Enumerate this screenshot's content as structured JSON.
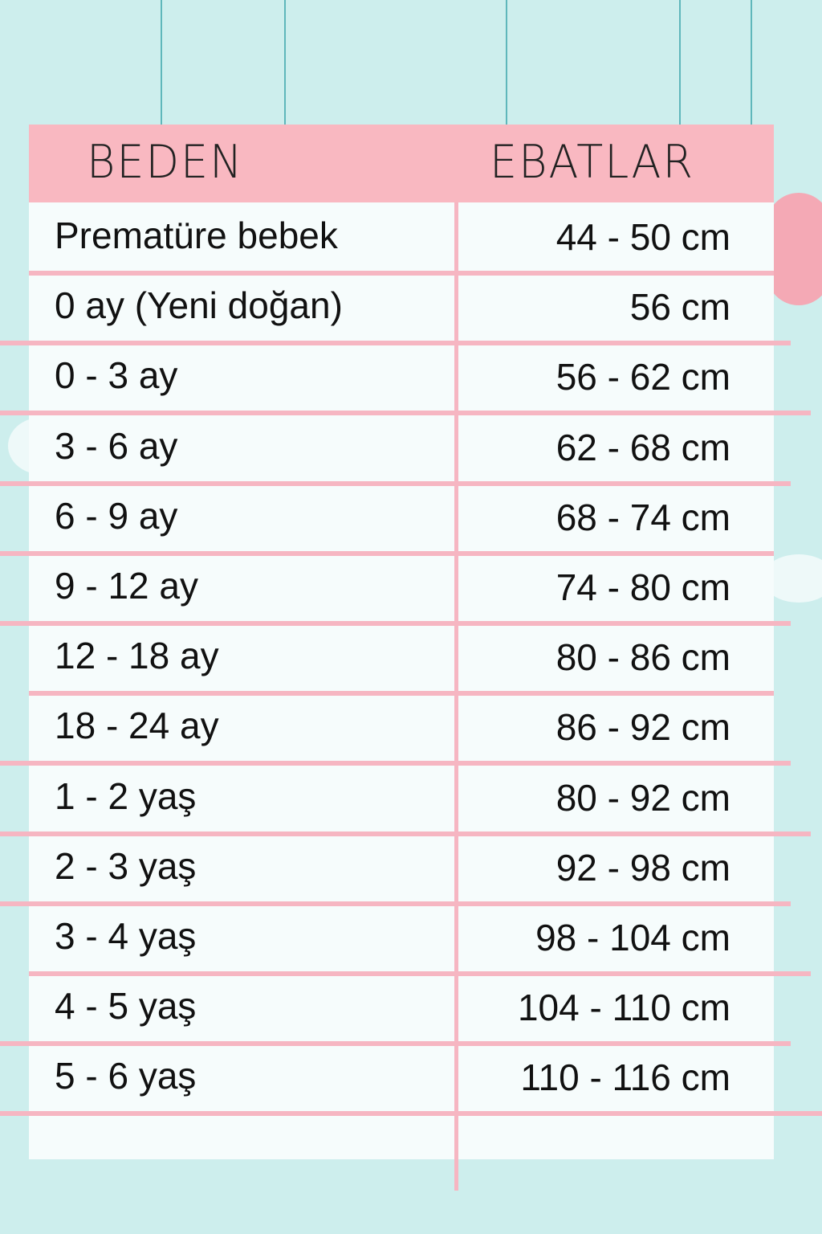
{
  "header": {
    "col_size": "BEDEN",
    "col_dims": "EBATLAR"
  },
  "rows": [
    {
      "size": "Prematüre bebek",
      "dims": "44 - 50 cm"
    },
    {
      "size": "0 ay (Yeni doğan)",
      "dims": "56 cm"
    },
    {
      "size": "0 - 3 ay",
      "dims": "56 - 62 cm"
    },
    {
      "size": "3 - 6 ay",
      "dims": "62 - 68 cm"
    },
    {
      "size": "6 - 9 ay",
      "dims": "68 - 74 cm"
    },
    {
      "size": "9 - 12 ay",
      "dims": "74 - 80 cm"
    },
    {
      "size": "12 - 18 ay",
      "dims": "80 - 86 cm"
    },
    {
      "size": "18 - 24 ay",
      "dims": "86 - 92 cm"
    },
    {
      "size": "1 - 2 yaş",
      "dims": "80 - 92 cm"
    },
    {
      "size": "2 - 3 yaş",
      "dims": "92 - 98 cm"
    },
    {
      "size": "3 - 4 yaş",
      "dims": "98 - 104 cm"
    },
    {
      "size": "4 - 5 yaş",
      "dims": "104 - 110 cm"
    },
    {
      "size": "5 - 6 yaş",
      "dims": "110 - 116 cm"
    }
  ],
  "colors": {
    "background": "#cdeeed",
    "header": "#f9b8c1",
    "lines": "#f6b6c2",
    "strings": "#5fb7bb"
  }
}
